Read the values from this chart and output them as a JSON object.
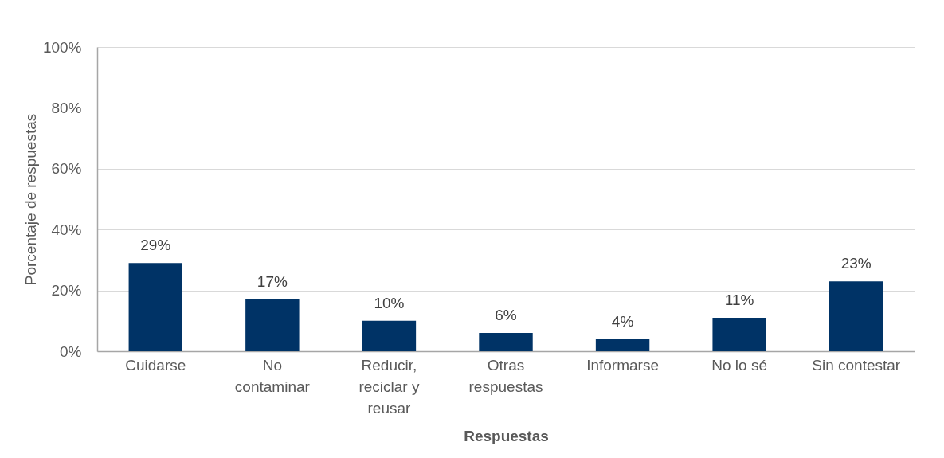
{
  "chart_data": {
    "type": "bar",
    "xlabel": "Respuestas",
    "ylabel": "Porcentaje de respuestas",
    "categories": [
      "Cuidarse",
      "No contaminar",
      "Reducir, reciclar y reusar",
      "Otras respuestas",
      "Informarse",
      "No lo sé",
      "Sin contestar"
    ],
    "values": [
      29,
      17,
      10,
      6,
      4,
      11,
      23
    ],
    "value_labels": [
      "29%",
      "17%",
      "10%",
      "6%",
      "4%",
      "11%",
      "23%"
    ],
    "color": "#003366",
    "ylim": [
      0,
      100
    ],
    "yticks": [
      {
        "value": 0,
        "label": "0%"
      },
      {
        "value": 20,
        "label": "20%"
      },
      {
        "value": 40,
        "label": "40%"
      },
      {
        "value": 60,
        "label": "60%"
      },
      {
        "value": 80,
        "label": "80%"
      },
      {
        "value": 100,
        "label": "100%"
      }
    ],
    "grid": "y"
  }
}
